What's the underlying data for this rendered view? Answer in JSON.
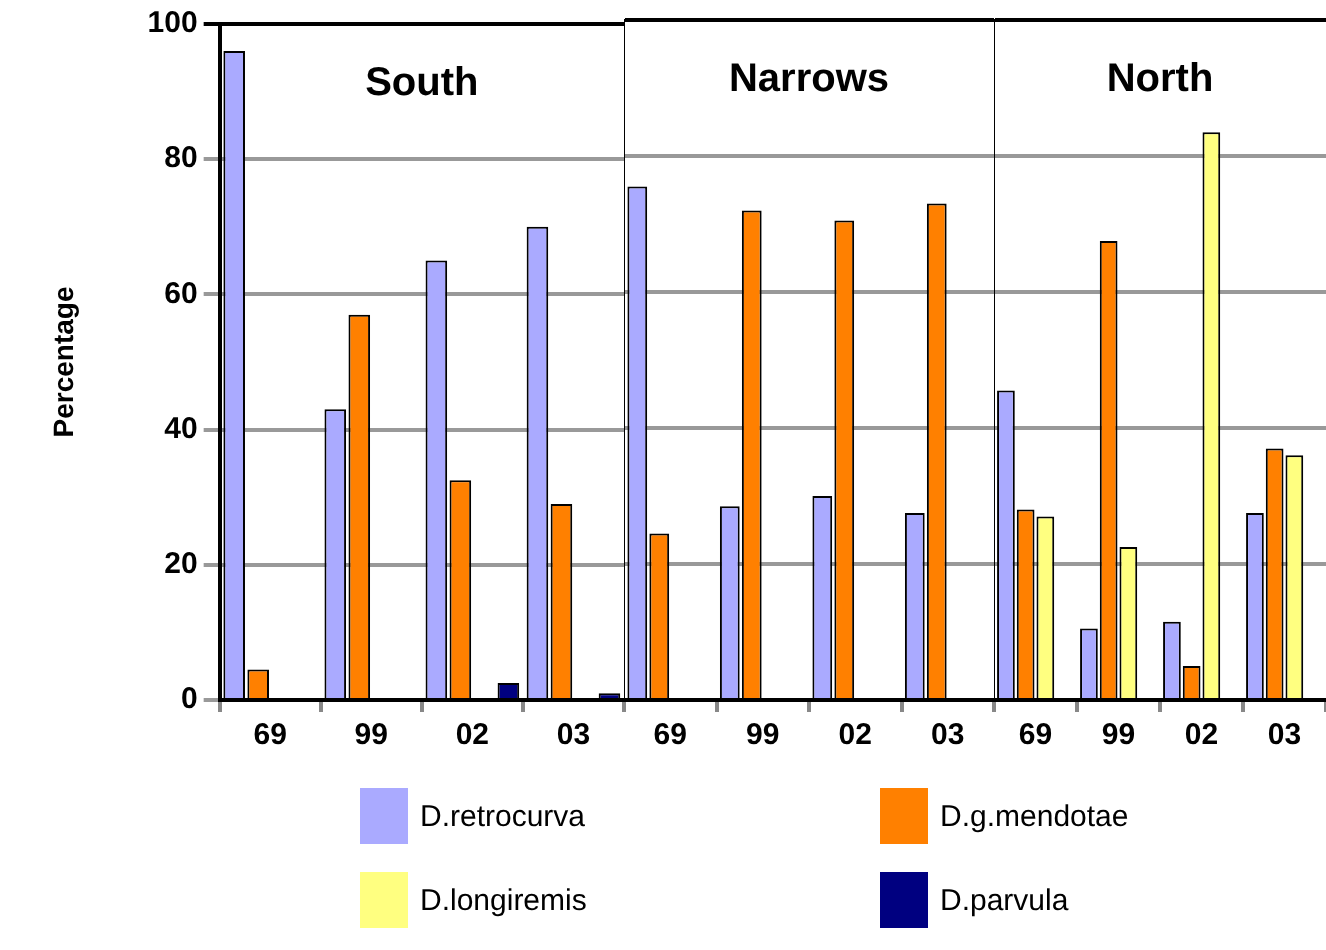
{
  "chart_data": [
    {
      "type": "bar",
      "title": "South",
      "ylabel": "Percentage",
      "categories": [
        "69",
        "99",
        "02",
        "03"
      ],
      "series": [
        {
          "name": "D.retrocurva",
          "color": "#aaaaff",
          "values": [
            96,
            43,
            65,
            70
          ]
        },
        {
          "name": "D.g.mendotae",
          "color": "#ff8000",
          "values": [
            4.5,
            57,
            32.5,
            29
          ]
        },
        {
          "name": "D.longiremis",
          "color": "#ffff80",
          "values": [
            null,
            null,
            null,
            null
          ]
        },
        {
          "name": "D.parvula",
          "color": "#000080",
          "values": [
            null,
            null,
            2.5,
            1
          ]
        }
      ],
      "ylim": [
        0,
        100
      ],
      "yticks": [
        0,
        20,
        40,
        60,
        80,
        100
      ],
      "grid": "y",
      "legend": "bottom"
    },
    {
      "type": "bar",
      "title": "Narrows",
      "categories": [
        "69",
        "99",
        "02",
        "03"
      ],
      "series": [
        {
          "color": "#aaaaff",
          "values": [
            75.5,
            28.5,
            30,
            27.5
          ]
        },
        {
          "color": "#ff8000",
          "values": [
            24.5,
            72,
            70.5,
            73
          ]
        },
        {
          "color": "#ffff80",
          "values": [
            null,
            null,
            null,
            null
          ]
        },
        {
          "color": "#000080",
          "values": [
            null,
            null,
            null,
            null
          ]
        }
      ],
      "ylim": [
        0,
        100
      ],
      "yticks": [
        0,
        20,
        40,
        60,
        80,
        100
      ],
      "grid": "y",
      "tick_labels": "x"
    },
    {
      "type": "bar",
      "title": "North",
      "categories": [
        "69",
        "99",
        "02",
        "03"
      ],
      "series": [
        {
          "color": "#aaaaff",
          "values": [
            45.5,
            10.5,
            11.5,
            27.5
          ]
        },
        {
          "color": "#ff8000",
          "values": [
            28,
            67.5,
            5,
            37
          ]
        },
        {
          "color": "#ffff80",
          "values": [
            27,
            22.5,
            83.5,
            36
          ]
        },
        {
          "color": "#000080",
          "values": [
            null,
            null,
            null,
            null
          ]
        }
      ],
      "ylim": [
        0,
        100
      ],
      "yticks": [
        0,
        20,
        40,
        60,
        80,
        100
      ],
      "grid": "y",
      "tick_labels": "x"
    }
  ]
}
